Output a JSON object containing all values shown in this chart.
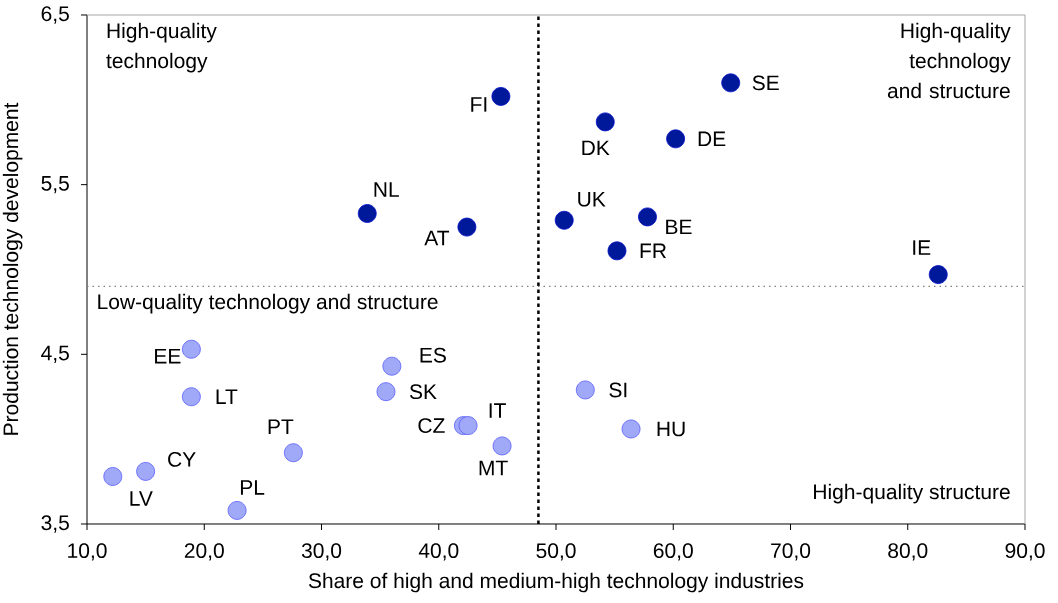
{
  "chart_data": {
    "type": "scatter",
    "xlabel": "Share of high and medium-high technology industries",
    "ylabel": "Production technology development",
    "xlim": [
      10,
      90
    ],
    "ylim": [
      3.5,
      6.5
    ],
    "xticks": [
      {
        "value": 10,
        "label": "10,0"
      },
      {
        "value": 20,
        "label": "20,0"
      },
      {
        "value": 30,
        "label": "30,0"
      },
      {
        "value": 40,
        "label": "40,0"
      },
      {
        "value": 50,
        "label": "50,0"
      },
      {
        "value": 60,
        "label": "60,0"
      },
      {
        "value": 70,
        "label": "70,0"
      },
      {
        "value": 80,
        "label": "80,0"
      },
      {
        "value": 90,
        "label": "90,0"
      }
    ],
    "yticks": [
      {
        "value": 3.5,
        "label": "3,5"
      },
      {
        "value": 4.5,
        "label": "4,5"
      },
      {
        "value": 5.5,
        "label": "5,5"
      },
      {
        "value": 6.5,
        "label": "6,5"
      }
    ],
    "grid": false,
    "marker": "circle",
    "series": [
      {
        "color": "#00189a",
        "x": [
          45.3,
          33.9,
          42.4,
          64.9,
          54.2,
          60.2,
          50.7,
          57.8,
          55.2,
          82.6
        ],
        "values": [
          6.02,
          5.33,
          5.25,
          6.1,
          5.87,
          5.77,
          5.29,
          5.31,
          5.11,
          4.97
        ]
      },
      {
        "color": "#a0a8f8",
        "x": [
          18.9,
          18.9,
          36.0,
          35.5,
          42.1,
          42.5,
          45.4,
          27.6,
          15.0,
          12.2,
          22.8,
          52.5,
          56.4
        ],
        "values": [
          4.53,
          4.25,
          4.43,
          4.28,
          4.08,
          4.08,
          3.96,
          3.92,
          3.81,
          3.78,
          3.58,
          4.29,
          4.06
        ]
      }
    ],
    "ref_lines": [
      {
        "axis": "x",
        "value": 48.5,
        "color": "#000000",
        "line_style": "dashed"
      },
      {
        "axis": "y",
        "value": 4.9,
        "color": "#808080",
        "line_style": "dotted"
      }
    ],
    "annotations": [
      {
        "text": "FI",
        "x": 45.3,
        "y": 6.02
      },
      {
        "text": "NL",
        "x": 33.9,
        "y": 5.33
      },
      {
        "text": "AT",
        "x": 42.4,
        "y": 5.25
      },
      {
        "text": "SE",
        "x": 64.9,
        "y": 6.1
      },
      {
        "text": "DK",
        "x": 54.2,
        "y": 5.87
      },
      {
        "text": "DE",
        "x": 60.2,
        "y": 5.77
      },
      {
        "text": "UK",
        "x": 50.7,
        "y": 5.29
      },
      {
        "text": "BE",
        "x": 57.8,
        "y": 5.31
      },
      {
        "text": "FR",
        "x": 55.2,
        "y": 5.11
      },
      {
        "text": "IE",
        "x": 82.6,
        "y": 4.97
      },
      {
        "text": "EE",
        "x": 18.9,
        "y": 4.53
      },
      {
        "text": "LT",
        "x": 18.9,
        "y": 4.25
      },
      {
        "text": "ES",
        "x": 36.0,
        "y": 4.43
      },
      {
        "text": "SK",
        "x": 35.5,
        "y": 4.28
      },
      {
        "text": "CZ",
        "x": 42.1,
        "y": 4.08
      },
      {
        "text": "IT",
        "x": 42.5,
        "y": 4.08
      },
      {
        "text": "MT",
        "x": 45.4,
        "y": 3.96
      },
      {
        "text": "PT",
        "x": 27.6,
        "y": 3.92
      },
      {
        "text": "CY",
        "x": 15.0,
        "y": 3.81
      },
      {
        "text": "LV",
        "x": 12.2,
        "y": 3.78
      },
      {
        "text": "PL",
        "x": 22.8,
        "y": 3.58
      },
      {
        "text": "SI",
        "x": 52.5,
        "y": 4.29
      },
      {
        "text": "HU",
        "x": 56.4,
        "y": 4.06
      },
      "High-quality technology",
      "High-quality technology and structure",
      "Low-quality technology and structure",
      "High-quality structure"
    ]
  }
}
